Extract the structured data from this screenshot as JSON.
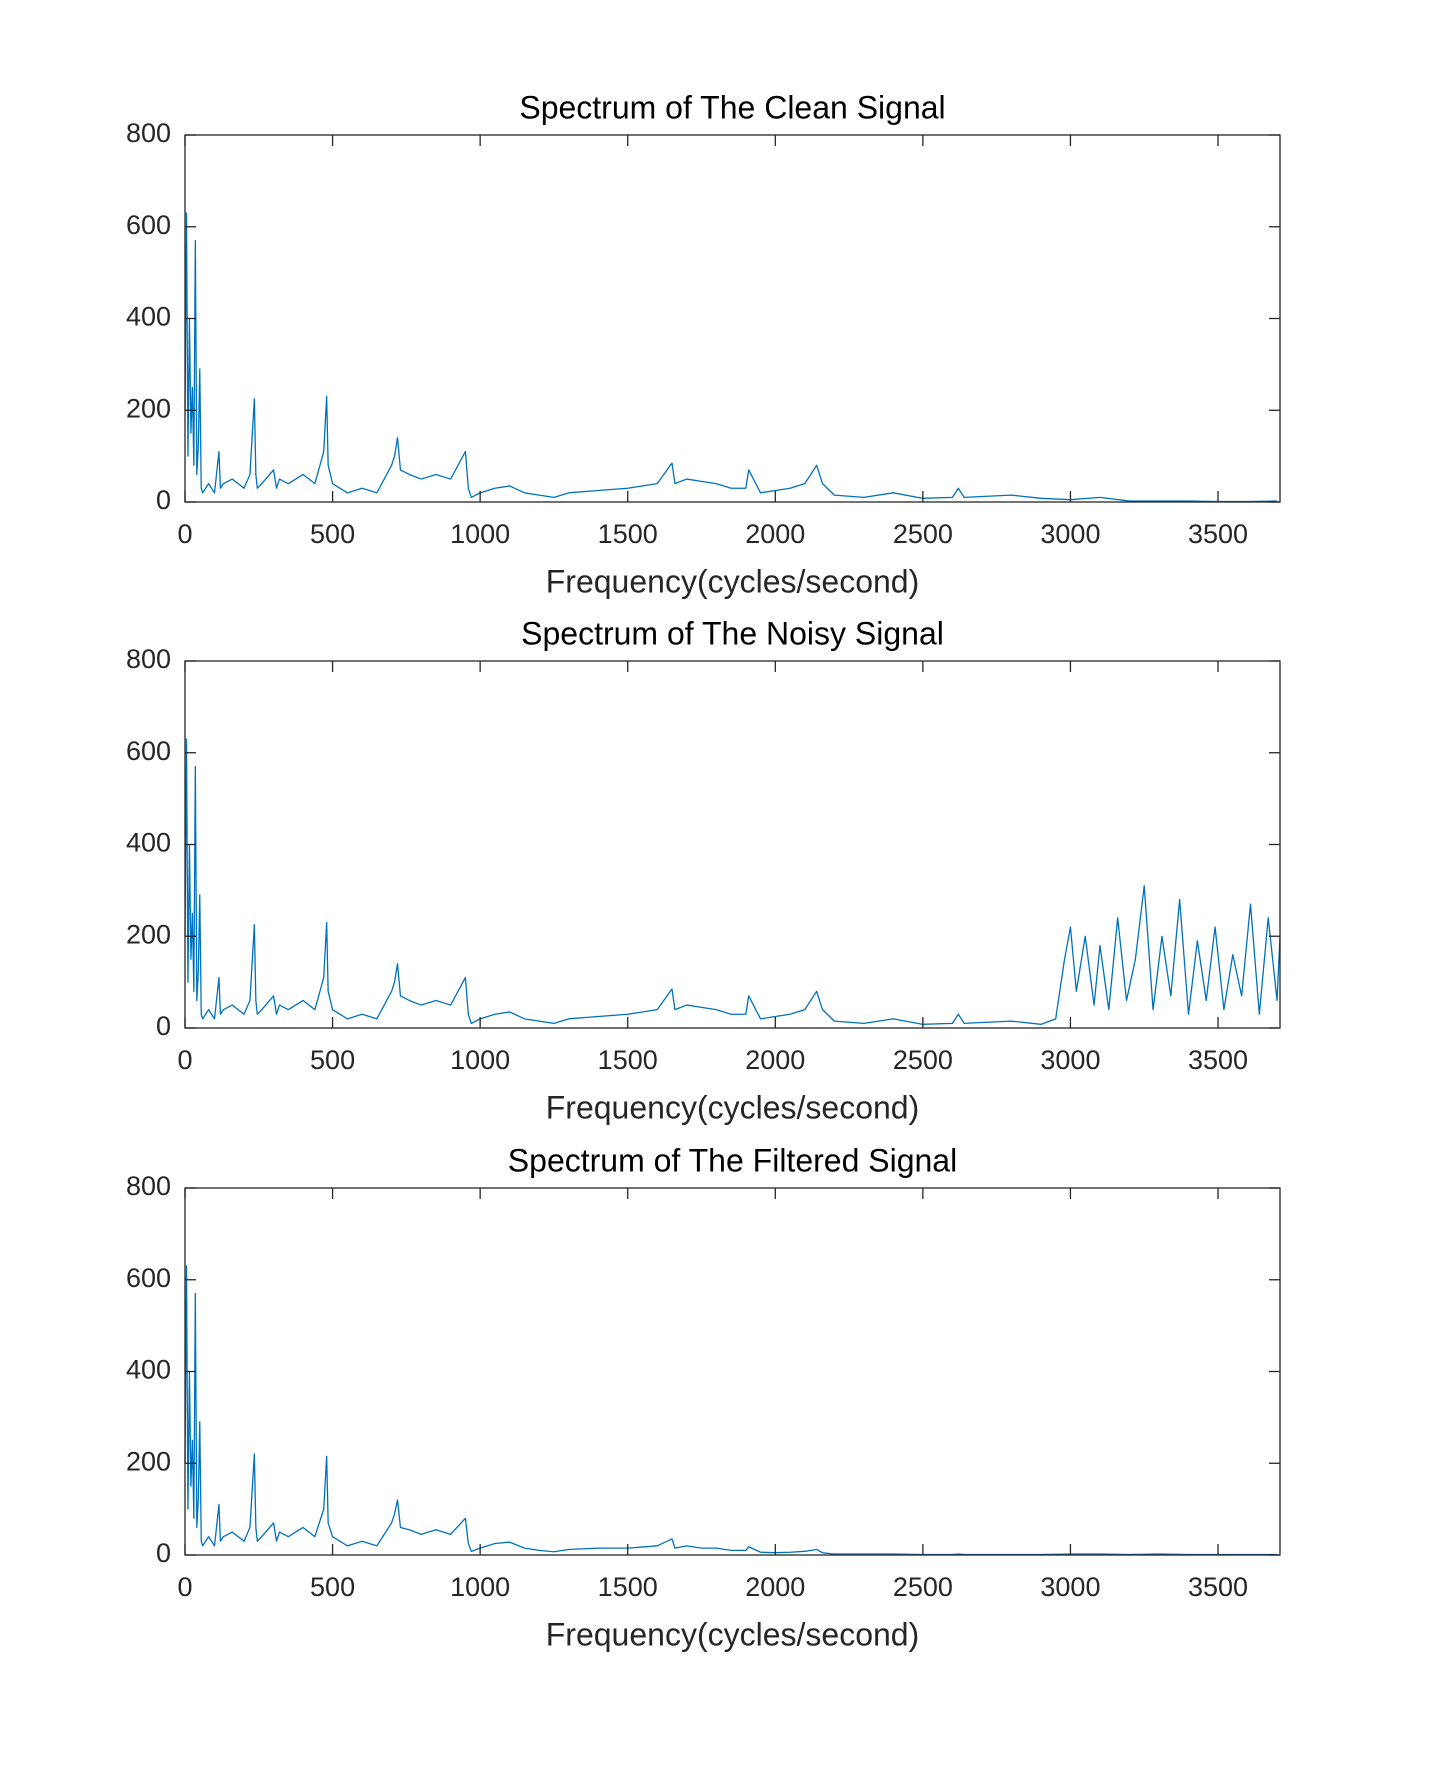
{
  "chart_data": [
    {
      "type": "line",
      "title": "Spectrum of The Clean Signal",
      "x_label": "Frequency(cycles/second)",
      "xlim": [
        0,
        3710
      ],
      "ylim": [
        0,
        800
      ],
      "xticks": [
        0,
        500,
        1000,
        1500,
        2000,
        2500,
        3000,
        3500
      ],
      "yticks": [
        0,
        200,
        400,
        600,
        800
      ],
      "series": [
        {
          "color": "#0072bd",
          "x": [
            0,
            5,
            10,
            15,
            20,
            25,
            30,
            35,
            40,
            45,
            50,
            55,
            60,
            80,
            100,
            115,
            120,
            130,
            160,
            200,
            220,
            235,
            240,
            245,
            260,
            300,
            310,
            320,
            350,
            400,
            440,
            470,
            480,
            485,
            500,
            550,
            600,
            650,
            700,
            710,
            720,
            730,
            760,
            800,
            850,
            900,
            950,
            960,
            970,
            1000,
            1050,
            1100,
            1150,
            1200,
            1250,
            1300,
            1400,
            1500,
            1600,
            1650,
            1660,
            1700,
            1750,
            1800,
            1850,
            1900,
            1910,
            1950,
            2000,
            2050,
            2100,
            2140,
            2160,
            2200,
            2300,
            2400,
            2500,
            2600,
            2620,
            2640,
            2700,
            2800,
            2900,
            3000,
            3100,
            3200,
            3300,
            3400,
            3500,
            3600,
            3700
          ],
          "values": [
            200,
            630,
            100,
            400,
            150,
            250,
            80,
            570,
            60,
            120,
            290,
            30,
            20,
            40,
            20,
            110,
            30,
            40,
            50,
            30,
            60,
            225,
            60,
            30,
            40,
            70,
            30,
            50,
            40,
            60,
            40,
            110,
            230,
            80,
            40,
            20,
            30,
            20,
            80,
            100,
            140,
            70,
            60,
            50,
            60,
            50,
            110,
            30,
            10,
            20,
            30,
            35,
            20,
            15,
            10,
            20,
            25,
            30,
            40,
            85,
            40,
            50,
            45,
            40,
            30,
            30,
            70,
            20,
            25,
            30,
            40,
            80,
            40,
            15,
            10,
            20,
            8,
            10,
            30,
            10,
            12,
            15,
            8,
            5,
            10,
            2,
            2,
            2,
            1,
            1,
            2
          ]
        }
      ]
    },
    {
      "type": "line",
      "title": "Spectrum of The Noisy Signal",
      "x_label": "Frequency(cycles/second)",
      "xlim": [
        0,
        3710
      ],
      "ylim": [
        0,
        800
      ],
      "xticks": [
        0,
        500,
        1000,
        1500,
        2000,
        2500,
        3000,
        3500
      ],
      "yticks": [
        0,
        200,
        400,
        600,
        800
      ],
      "series": [
        {
          "color": "#0072bd",
          "x": [
            0,
            5,
            10,
            15,
            20,
            25,
            30,
            35,
            40,
            45,
            50,
            55,
            60,
            80,
            100,
            115,
            120,
            130,
            160,
            200,
            220,
            235,
            240,
            245,
            260,
            300,
            310,
            320,
            350,
            400,
            440,
            470,
            480,
            485,
            500,
            550,
            600,
            650,
            700,
            710,
            720,
            730,
            760,
            800,
            850,
            900,
            950,
            960,
            970,
            1000,
            1050,
            1100,
            1150,
            1200,
            1250,
            1300,
            1400,
            1500,
            1600,
            1650,
            1660,
            1700,
            1750,
            1800,
            1850,
            1900,
            1910,
            1950,
            2000,
            2050,
            2100,
            2140,
            2160,
            2200,
            2300,
            2400,
            2500,
            2600,
            2620,
            2640,
            2700,
            2800,
            2900,
            2950,
            2980,
            3000,
            3020,
            3050,
            3080,
            3100,
            3130,
            3160,
            3190,
            3220,
            3250,
            3280,
            3310,
            3340,
            3370,
            3400,
            3430,
            3460,
            3490,
            3520,
            3550,
            3580,
            3610,
            3640,
            3670,
            3700,
            3710
          ],
          "values": [
            200,
            630,
            100,
            400,
            150,
            250,
            80,
            570,
            60,
            120,
            290,
            30,
            20,
            40,
            20,
            110,
            30,
            40,
            50,
            30,
            60,
            225,
            60,
            30,
            40,
            70,
            30,
            50,
            40,
            60,
            40,
            110,
            230,
            80,
            40,
            20,
            30,
            20,
            80,
            100,
            140,
            70,
            60,
            50,
            60,
            50,
            110,
            30,
            10,
            20,
            30,
            35,
            20,
            15,
            10,
            20,
            25,
            30,
            40,
            85,
            40,
            50,
            45,
            40,
            30,
            30,
            70,
            20,
            25,
            30,
            40,
            80,
            40,
            15,
            10,
            20,
            8,
            10,
            30,
            10,
            12,
            15,
            8,
            20,
            150,
            220,
            80,
            200,
            50,
            180,
            40,
            240,
            60,
            150,
            310,
            40,
            200,
            70,
            280,
            30,
            190,
            60,
            220,
            40,
            160,
            70,
            270,
            30,
            240,
            60,
            200
          ]
        }
      ]
    },
    {
      "type": "line",
      "title": "Spectrum of The Filtered Signal",
      "x_label": "Frequency(cycles/second)",
      "xlim": [
        0,
        3710
      ],
      "ylim": [
        0,
        800
      ],
      "xticks": [
        0,
        500,
        1000,
        1500,
        2000,
        2500,
        3000,
        3500
      ],
      "yticks": [
        0,
        200,
        400,
        600,
        800
      ],
      "series": [
        {
          "color": "#0072bd",
          "x": [
            0,
            5,
            10,
            15,
            20,
            25,
            30,
            35,
            40,
            45,
            50,
            55,
            60,
            80,
            100,
            115,
            120,
            130,
            160,
            200,
            220,
            235,
            240,
            245,
            260,
            300,
            310,
            320,
            350,
            400,
            440,
            470,
            480,
            485,
            500,
            550,
            600,
            650,
            700,
            710,
            720,
            730,
            760,
            800,
            850,
            900,
            950,
            960,
            970,
            1000,
            1050,
            1100,
            1150,
            1200,
            1250,
            1300,
            1400,
            1500,
            1600,
            1650,
            1660,
            1700,
            1750,
            1800,
            1850,
            1900,
            1910,
            1950,
            2000,
            2050,
            2100,
            2140,
            2160,
            2200,
            2300,
            2400,
            2500,
            2600,
            2620,
            2640,
            2700,
            2800,
            2900,
            3000,
            3100,
            3200,
            3300,
            3400,
            3500,
            3600,
            3700
          ],
          "values": [
            200,
            630,
            100,
            400,
            150,
            250,
            80,
            570,
            60,
            120,
            290,
            30,
            20,
            40,
            20,
            110,
            30,
            40,
            50,
            30,
            60,
            220,
            60,
            30,
            40,
            70,
            30,
            50,
            40,
            60,
            40,
            100,
            215,
            70,
            40,
            20,
            30,
            20,
            70,
            90,
            120,
            60,
            55,
            45,
            55,
            45,
            80,
            25,
            8,
            15,
            25,
            28,
            15,
            10,
            7,
            12,
            15,
            15,
            20,
            35,
            15,
            20,
            15,
            15,
            10,
            10,
            18,
            6,
            5,
            6,
            8,
            12,
            5,
            2,
            2,
            2,
            1,
            1,
            2,
            1,
            1,
            1,
            1,
            2,
            2,
            1,
            2,
            1,
            1,
            1,
            1
          ]
        }
      ]
    }
  ]
}
